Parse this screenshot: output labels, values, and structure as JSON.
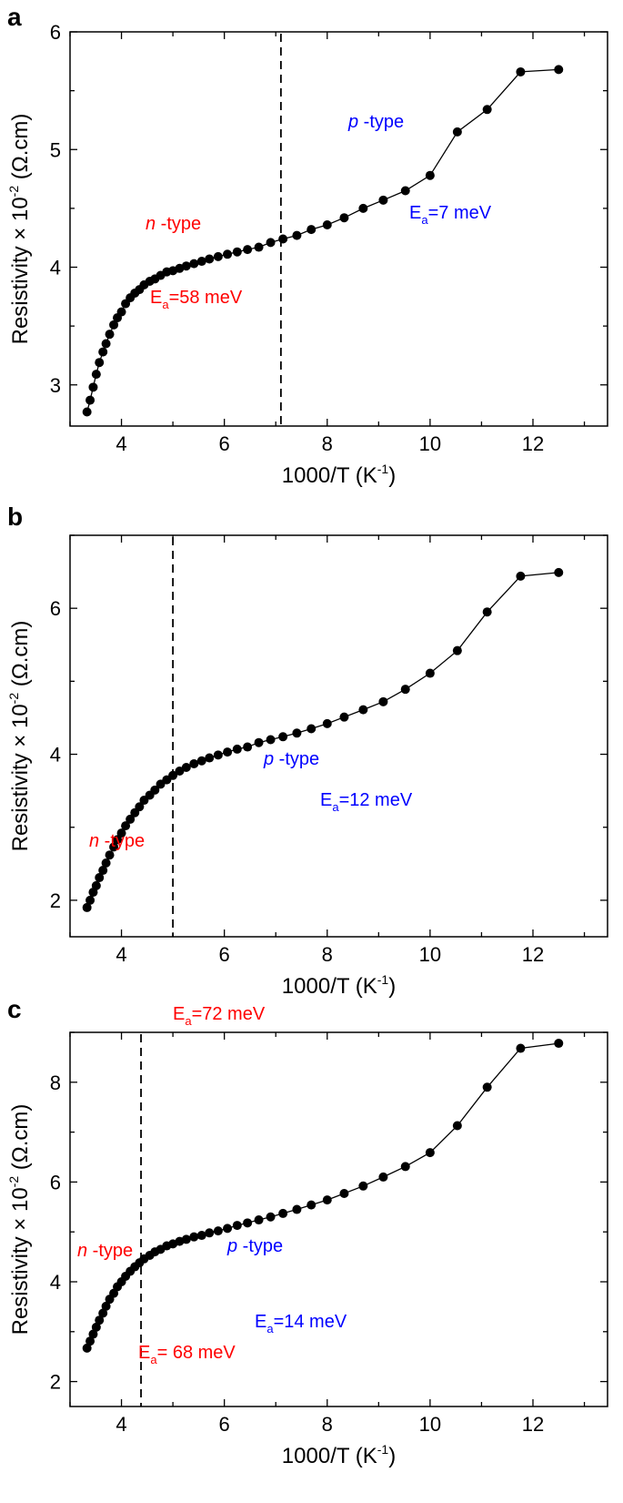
{
  "chart_data": [
    {
      "type": "line",
      "panel_label": "a",
      "xlabel": {
        "main": "1000/T (K",
        "sup": "-1",
        "end": ")"
      },
      "ylabel": {
        "main": "Resistivity × 10",
        "sup": "-2",
        "end": " (Ω.cm)"
      },
      "xlim": [
        3.0,
        13.45
      ],
      "ylim": [
        2.65,
        6.0
      ],
      "xticks": [
        4,
        6,
        8,
        10,
        12
      ],
      "yticks": [
        3,
        4,
        5,
        6
      ],
      "divider_x": 7.1,
      "marker_color": "#000000",
      "x": [
        3.33,
        3.39,
        3.45,
        3.51,
        3.57,
        3.64,
        3.7,
        3.77,
        3.85,
        3.92,
        4.0,
        4.08,
        4.17,
        4.26,
        4.35,
        4.44,
        4.55,
        4.65,
        4.76,
        4.88,
        5.0,
        5.13,
        5.26,
        5.41,
        5.56,
        5.71,
        5.88,
        6.06,
        6.25,
        6.45,
        6.67,
        6.9,
        7.14,
        7.41,
        7.69,
        8.0,
        8.33,
        8.7,
        9.09,
        9.52,
        10.0,
        10.53,
        11.11,
        11.76,
        12.5
      ],
      "y": [
        2.77,
        2.87,
        2.98,
        3.09,
        3.19,
        3.28,
        3.35,
        3.43,
        3.51,
        3.57,
        3.62,
        3.69,
        3.74,
        3.78,
        3.81,
        3.85,
        3.88,
        3.9,
        3.93,
        3.96,
        3.97,
        3.99,
        4.01,
        4.03,
        4.05,
        4.07,
        4.09,
        4.11,
        4.13,
        4.15,
        4.17,
        4.21,
        4.24,
        4.27,
        4.32,
        4.36,
        4.42,
        4.5,
        4.57,
        4.65,
        4.78,
        5.15,
        5.34,
        5.66,
        5.68
      ],
      "annotations": {
        "n_type": {
          "letter": "n",
          "suffix": " -type",
          "color": "#ff0000"
        },
        "n_ea": {
          "e": "E",
          "sub": "a",
          "value": "=58 meV",
          "color": "#ff0000"
        },
        "p_type": {
          "letter": "p",
          "suffix": " -type",
          "color": "#0000ff"
        },
        "p_ea": {
          "e": "E",
          "sub": "a",
          "value": "=7 meV",
          "color": "#0000ff"
        }
      }
    },
    {
      "type": "line",
      "panel_label": "b",
      "xlabel": {
        "main": "1000/T (K",
        "sup": "-1",
        "end": ")"
      },
      "ylabel": {
        "main": "Resistivity × 10",
        "sup": "-2",
        "end": " (Ω.cm)"
      },
      "xlim": [
        3.0,
        13.45
      ],
      "ylim": [
        1.5,
        7.0
      ],
      "xticks": [
        4,
        6,
        8,
        10,
        12
      ],
      "yticks": [
        2,
        4,
        6
      ],
      "divider_x": 5.0,
      "marker_color": "#000000",
      "x": [
        3.33,
        3.39,
        3.45,
        3.51,
        3.57,
        3.64,
        3.7,
        3.77,
        3.85,
        3.92,
        4.0,
        4.08,
        4.17,
        4.26,
        4.35,
        4.44,
        4.55,
        4.65,
        4.76,
        4.88,
        5.0,
        5.13,
        5.26,
        5.41,
        5.56,
        5.71,
        5.88,
        6.06,
        6.25,
        6.45,
        6.67,
        6.9,
        7.14,
        7.41,
        7.69,
        8.0,
        8.33,
        8.7,
        9.09,
        9.52,
        10.0,
        10.53,
        11.11,
        11.76,
        12.5
      ],
      "y": [
        1.9,
        2.0,
        2.11,
        2.2,
        2.31,
        2.41,
        2.51,
        2.62,
        2.73,
        2.83,
        2.92,
        3.02,
        3.11,
        3.2,
        3.28,
        3.37,
        3.44,
        3.51,
        3.59,
        3.65,
        3.71,
        3.77,
        3.82,
        3.87,
        3.91,
        3.95,
        3.99,
        4.03,
        4.07,
        4.1,
        4.16,
        4.2,
        4.24,
        4.29,
        4.35,
        4.42,
        4.51,
        4.61,
        4.72,
        4.89,
        5.11,
        5.42,
        5.95,
        6.44,
        6.49
      ],
      "annotations": {
        "n_type": {
          "letter": "n",
          "suffix": " -type",
          "color": "#ff0000"
        },
        "n_ea": {
          "e": "E",
          "sub": "a",
          "value": "=72 meV",
          "color": "#ff0000"
        },
        "p_type": {
          "letter": "p",
          "suffix": " -type",
          "color": "#0000ff"
        },
        "p_ea": {
          "e": "E",
          "sub": "a",
          "value": "=12 meV",
          "color": "#0000ff"
        }
      }
    },
    {
      "type": "line",
      "panel_label": "c",
      "xlabel": {
        "main": "1000/T (K",
        "sup": "-1",
        "end": ")"
      },
      "ylabel": {
        "main": "Resistivity × 10",
        "sup": "-2",
        "end": " (Ω.cm)"
      },
      "xlim": [
        3.0,
        13.45
      ],
      "ylim": [
        1.5,
        9.0
      ],
      "xticks": [
        4,
        6,
        8,
        10,
        12
      ],
      "yticks": [
        2,
        4,
        6,
        8
      ],
      "divider_x": 4.38,
      "marker_color": "#000000",
      "x": [
        3.33,
        3.39,
        3.45,
        3.51,
        3.57,
        3.64,
        3.7,
        3.77,
        3.85,
        3.92,
        4.0,
        4.08,
        4.17,
        4.26,
        4.35,
        4.44,
        4.55,
        4.65,
        4.76,
        4.88,
        5.0,
        5.13,
        5.26,
        5.41,
        5.56,
        5.71,
        5.88,
        6.06,
        6.25,
        6.45,
        6.67,
        6.9,
        7.14,
        7.41,
        7.69,
        8.0,
        8.33,
        8.7,
        9.09,
        9.52,
        10.0,
        10.53,
        11.11,
        11.76,
        12.5
      ],
      "y": [
        2.67,
        2.81,
        2.95,
        3.09,
        3.23,
        3.37,
        3.51,
        3.65,
        3.77,
        3.9,
        4.0,
        4.11,
        4.21,
        4.3,
        4.38,
        4.46,
        4.53,
        4.6,
        4.65,
        4.72,
        4.76,
        4.81,
        4.85,
        4.9,
        4.93,
        4.98,
        5.02,
        5.07,
        5.13,
        5.18,
        5.24,
        5.3,
        5.37,
        5.45,
        5.54,
        5.64,
        5.77,
        5.92,
        6.1,
        6.31,
        6.59,
        7.13,
        7.9,
        8.68,
        8.78
      ],
      "annotations": {
        "n_type": {
          "letter": "n",
          "suffix": " -type",
          "color": "#ff0000"
        },
        "n_ea": {
          "e": "E",
          "sub": "a",
          "value": "= 68 meV",
          "color": "#ff0000"
        },
        "p_type": {
          "letter": "p",
          "suffix": " -type",
          "color": "#0000ff"
        },
        "p_ea": {
          "e": "E",
          "sub": "a",
          "value": "=14 meV",
          "color": "#0000ff"
        }
      }
    }
  ]
}
